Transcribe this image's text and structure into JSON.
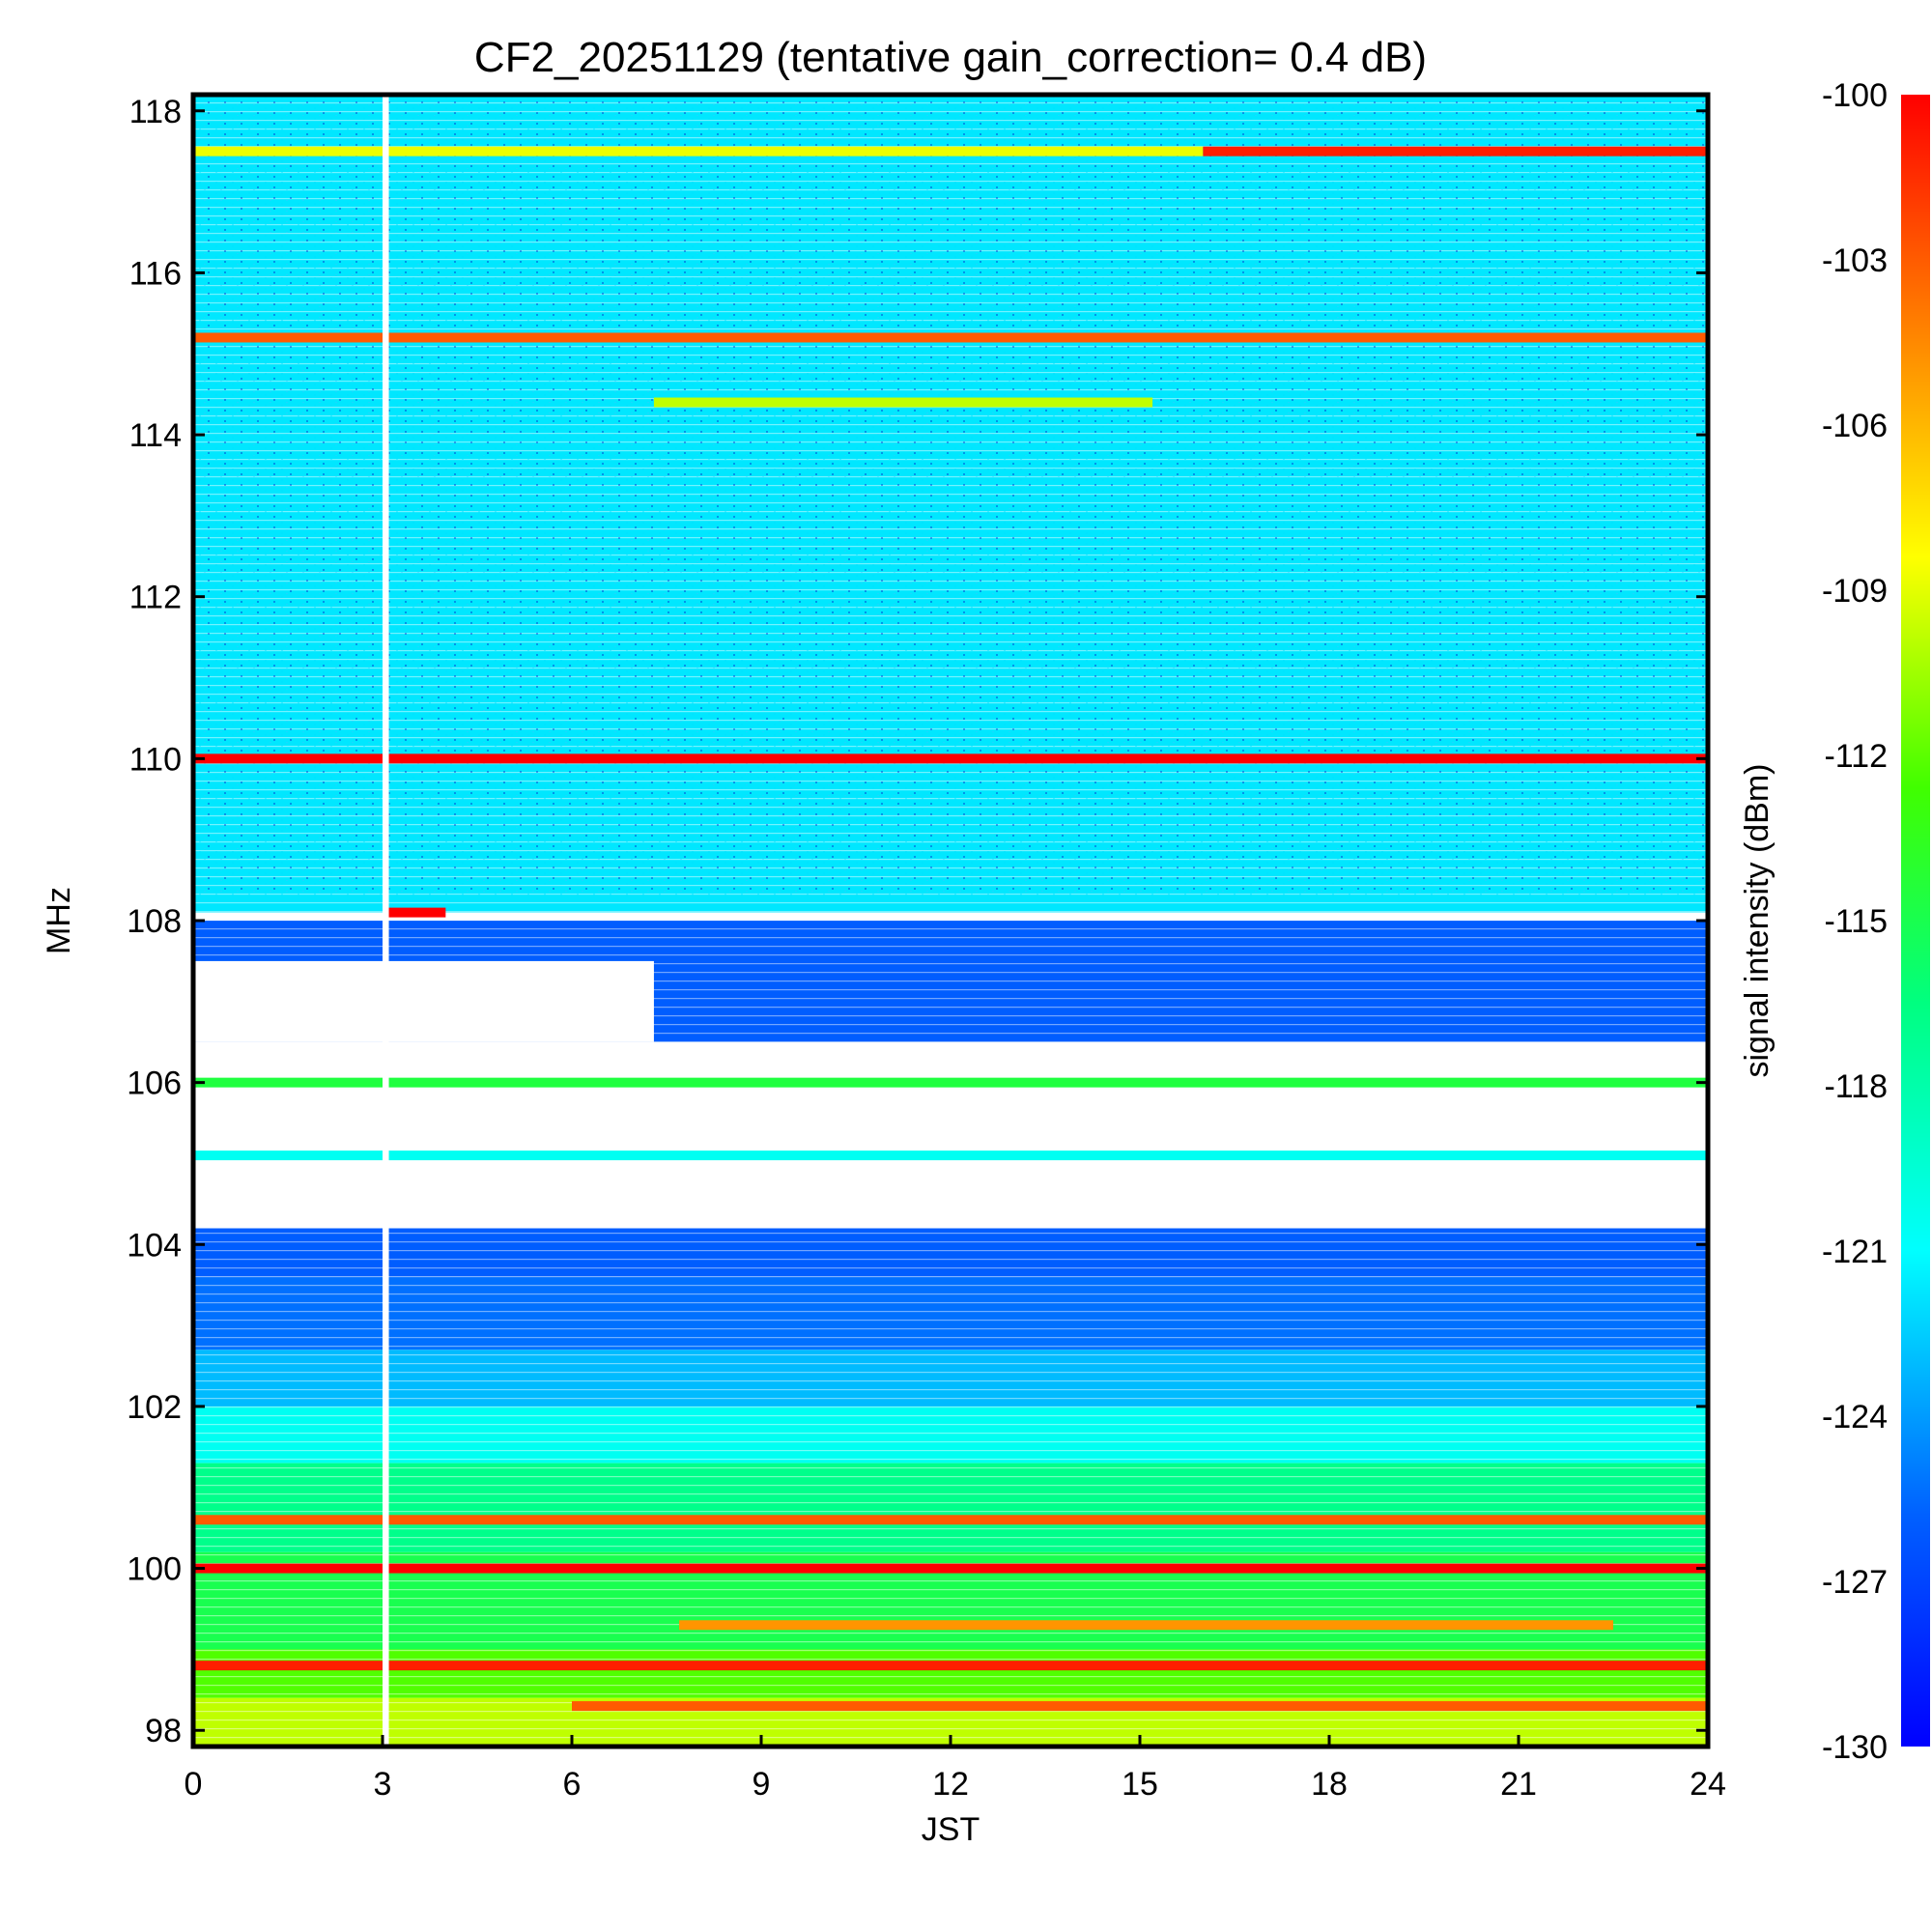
{
  "chart_data": {
    "type": "heatmap",
    "title": "CF2_20251129 (tentative gain_correction=  0.4 dB)",
    "xlabel": "JST",
    "ylabel": "MHz",
    "colorbar_label": "signal intensity (dBm)",
    "xlim": [
      0,
      24
    ],
    "ylim": [
      97.8,
      118.2
    ],
    "clim": [
      -130,
      -100
    ],
    "x_ticks": [
      "0",
      "3",
      "6",
      "9",
      "12",
      "15",
      "18",
      "21",
      "24"
    ],
    "y_ticks": [
      "98",
      "100",
      "102",
      "104",
      "106",
      "108",
      "110",
      "112",
      "114",
      "116",
      "118"
    ],
    "colorbar_ticks": [
      "-100",
      "-103",
      "-106",
      "-109",
      "-112",
      "-115",
      "-118",
      "-121",
      "-124",
      "-127",
      "-130"
    ],
    "colormap": [
      "#0000ff",
      "#00a0ff",
      "#00ffff",
      "#00ff80",
      "#40ff00",
      "#ffff00",
      "#ff8000",
      "#ff0000"
    ],
    "background_bands": [
      {
        "from": 108.1,
        "to": 118.2,
        "dbm": -122.5
      },
      {
        "from": 103.6,
        "to": 108.0,
        "dbm": -127.5
      },
      {
        "from": 102.7,
        "to": 103.6,
        "dbm": -127.0
      },
      {
        "from": 102.0,
        "to": 102.7,
        "dbm": -124.5
      },
      {
        "from": 101.3,
        "to": 102.0,
        "dbm": -121.0
      },
      {
        "from": 100.2,
        "to": 101.3,
        "dbm": -117.5
      },
      {
        "from": 99.0,
        "to": 100.2,
        "dbm": -115.5
      },
      {
        "from": 98.4,
        "to": 99.0,
        "dbm": -112.5
      },
      {
        "from": 97.8,
        "to": 98.4,
        "dbm": -110.0
      }
    ],
    "blank_regions": [
      {
        "freq_from": 104.2,
        "freq_to": 106.5,
        "t_from": 0,
        "t_to": 24
      },
      {
        "freq_from": 106.5,
        "freq_to": 107.5,
        "t_from": 0,
        "t_to": 7.3
      },
      {
        "freq_from": 108.0,
        "freq_to": 108.1,
        "t_from": 0,
        "t_to": 24
      }
    ],
    "data_gap": {
      "t_from": 3.0,
      "t_to": 3.1
    },
    "strong_lines": [
      {
        "freq": 117.5,
        "dbm": -109,
        "t_from": 0,
        "t_to": 16,
        "label": "117.5"
      },
      {
        "freq": 117.5,
        "dbm": -101,
        "t_from": 16,
        "t_to": 24,
        "label": "117.5"
      },
      {
        "freq": 115.2,
        "dbm": -103,
        "t_from": 0,
        "t_to": 24,
        "label": "115.2"
      },
      {
        "freq": 114.4,
        "dbm": -110,
        "t_from": 7.3,
        "t_to": 15.2,
        "label": "114.4"
      },
      {
        "freq": 110.0,
        "dbm": -100,
        "t_from": 0,
        "t_to": 24,
        "label": "110.0"
      },
      {
        "freq": 108.1,
        "dbm": -100,
        "t_from": 3.0,
        "t_to": 4.0,
        "label": "108.1"
      },
      {
        "freq": 106.0,
        "dbm": -115,
        "t_from": 0,
        "t_to": 24,
        "label": "106.0"
      },
      {
        "freq": 105.1,
        "dbm": -121,
        "t_from": 0,
        "t_to": 24,
        "label": "105.1"
      },
      {
        "freq": 100.0,
        "dbm": -100,
        "t_from": 0,
        "t_to": 24,
        "label": "100.0"
      },
      {
        "freq": 100.6,
        "dbm": -103,
        "t_from": 0,
        "t_to": 24,
        "label": "100.6"
      },
      {
        "freq": 99.3,
        "dbm": -105,
        "t_from": 7.7,
        "t_to": 22.5,
        "label": "99.3"
      },
      {
        "freq": 98.8,
        "dbm": -101,
        "t_from": 0,
        "t_to": 24,
        "label": "98.8"
      },
      {
        "freq": 98.3,
        "dbm": -103,
        "t_from": 6,
        "t_to": 24,
        "label": "98.3"
      }
    ]
  }
}
